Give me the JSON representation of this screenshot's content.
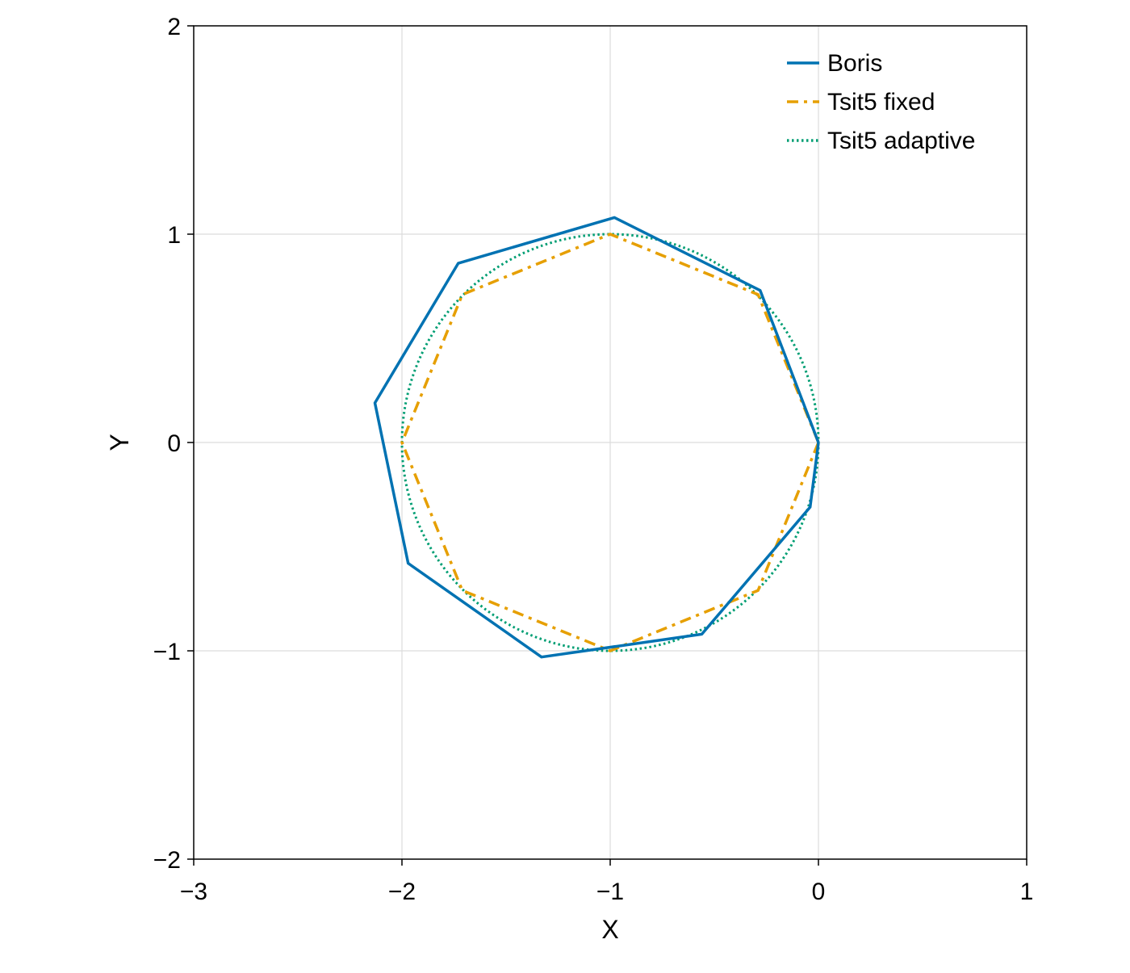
{
  "chart_data": {
    "type": "line",
    "title": "",
    "xlabel": "X",
    "ylabel": "Y",
    "xlim": [
      -3,
      1
    ],
    "ylim": [
      -2,
      2
    ],
    "xticks": [
      -3,
      -2,
      -1,
      0,
      1
    ],
    "yticks": [
      -2,
      -1,
      0,
      1,
      2
    ],
    "xtick_labels": [
      "−3",
      "−2",
      "−1",
      "0",
      "1"
    ],
    "ytick_labels": [
      "−2",
      "−1",
      "0",
      "1",
      "2"
    ],
    "grid": true,
    "legend_position": "top-right",
    "series": [
      {
        "name": "Boris",
        "style": "solid",
        "color": "#0072b2",
        "x": [
          0.0,
          -0.04,
          -0.56,
          -1.33,
          -1.97,
          -2.13,
          -1.73,
          -0.98,
          -0.28,
          0.0
        ],
        "y": [
          0.0,
          -0.31,
          -0.92,
          -1.03,
          -0.58,
          0.19,
          0.86,
          1.08,
          0.73,
          0.0
        ]
      },
      {
        "name": "Tsit5 fixed",
        "style": "dashdot",
        "color": "#e69f00",
        "x": [
          0.0,
          -0.29,
          -1.0,
          -1.71,
          -2.0,
          -1.71,
          -1.0,
          -0.29,
          0.0
        ],
        "y": [
          0.0,
          -0.71,
          -1.0,
          -0.71,
          0.0,
          0.71,
          1.0,
          0.71,
          0.0
        ]
      },
      {
        "name": "Tsit5 adaptive",
        "style": "dotted",
        "color": "#009e73",
        "circle": {
          "cx": -1,
          "cy": 0,
          "r": 1
        }
      }
    ]
  }
}
